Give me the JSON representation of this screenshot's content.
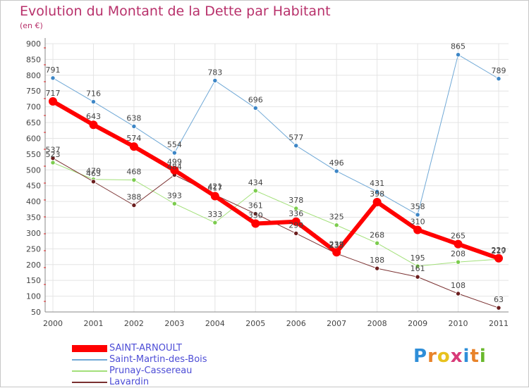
{
  "title": "Evolution du Montant de la Dette par Habitant",
  "unit": "(en €)",
  "logo": {
    "text": "Proxiti",
    "letter_colors": [
      "#2e8ed8",
      "#e8832a",
      "#e8c21e",
      "#d83a78",
      "#2e8ed8",
      "#e8832a",
      "#69b82c"
    ]
  },
  "chart_data": {
    "type": "line",
    "title": "Evolution du Montant de la Dette par Habitant",
    "ylabel": "(en €)",
    "xlabel": "",
    "x": [
      "2000",
      "2001",
      "2002",
      "2003",
      "2004",
      "2005",
      "2006",
      "2007",
      "2008",
      "2009",
      "2010",
      "2011"
    ],
    "ylim": [
      50,
      900
    ],
    "yticks": [
      50,
      100,
      150,
      200,
      250,
      300,
      350,
      400,
      450,
      500,
      550,
      600,
      650,
      700,
      750,
      800,
      850,
      900
    ],
    "grid": true,
    "legend_position": "bottom-left",
    "series": [
      {
        "name": "Saint-Martin-des-Bois",
        "color": "#6fa8d6",
        "point_color": "#3d86c6",
        "width": 1,
        "values": [
          791,
          716,
          638,
          554,
          783,
          696,
          577,
          496,
          431,
          358,
          865,
          789
        ]
      },
      {
        "name": "Prunay-Cassereau",
        "color": "#a3e07a",
        "point_color": "#7ccc4e",
        "width": 1,
        "values": [
          523,
          470,
          468,
          393,
          333,
          434,
          378,
          325,
          268,
          195,
          208,
          217
        ]
      },
      {
        "name": "Lavardin",
        "color": "#7a3030",
        "point_color": "#6b1e1e",
        "width": 1,
        "values": [
          537,
          463,
          388,
          484,
          421,
          361,
          299,
          235,
          188,
          161,
          108,
          63
        ]
      },
      {
        "name": "SAINT-ARNOULT",
        "color": "#ff0000",
        "point_color": "#ff0000",
        "width": 6,
        "values": [
          717,
          643,
          574,
          499,
          417,
          330,
          336,
          239,
          398,
          310,
          265,
          220
        ]
      }
    ],
    "legend_order": [
      "SAINT-ARNOULT",
      "Saint-Martin-des-Bois",
      "Prunay-Cassereau",
      "Lavardin"
    ]
  }
}
